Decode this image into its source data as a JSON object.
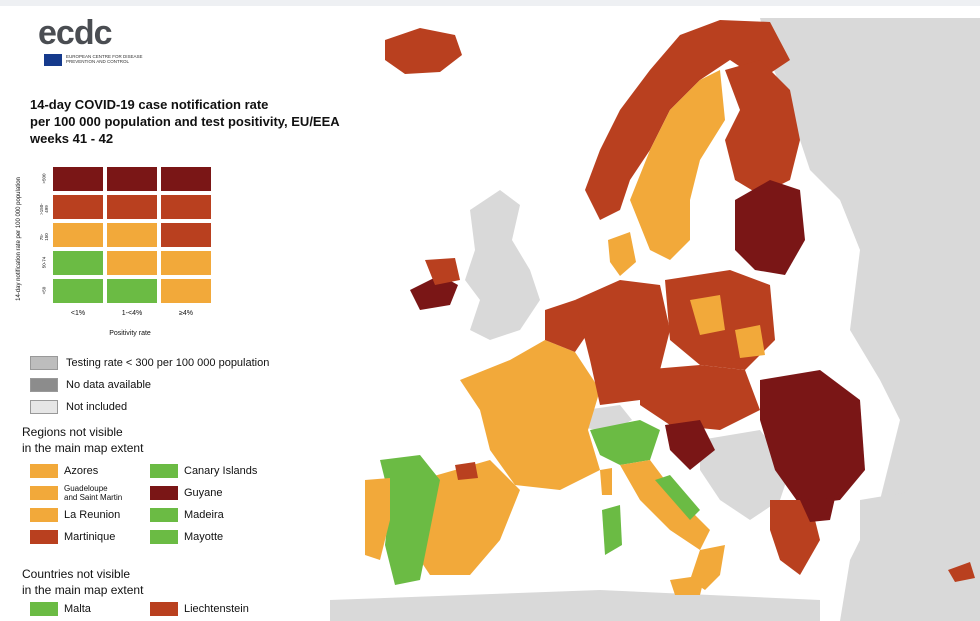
{
  "logo": {
    "word": "ecdc",
    "sub": "EUROPEAN CENTRE FOR DISEASE PREVENTION AND CONTROL"
  },
  "title": {
    "line1": "14-day COVID-19 case notification rate",
    "line2": "per 100 000 population and test positivity, EU/EEA",
    "line3": "weeks 41 - 42"
  },
  "colors": {
    "dark_red": "#7a1616",
    "red": "#b9401f",
    "orange": "#f2a93a",
    "green": "#6bbb44",
    "testing_grey": "#bdbdbd",
    "nodata_grey": "#8c8c8c",
    "not_included": "#e6e6e6",
    "sea": "#ffffff",
    "nonmember": "#d9d9d9"
  },
  "matrix": {
    "y_axis_title": "14-day notification rate per 100 000 population",
    "y_ticks": [
      ">500",
      ">150-499",
      "75-150",
      "50-74",
      "<50"
    ],
    "x_ticks": [
      "<1%",
      "1-<4%",
      "≥4%"
    ],
    "x_axis_title": "Positivity rate",
    "cells": [
      [
        "dark_red",
        "dark_red",
        "dark_red"
      ],
      [
        "red",
        "red",
        "red"
      ],
      [
        "orange",
        "orange",
        "red"
      ],
      [
        "green",
        "orange",
        "orange"
      ],
      [
        "green",
        "green",
        "orange"
      ]
    ]
  },
  "legend": {
    "testing": "Testing rate < 300 per 100 000 population",
    "no_data": "No data available",
    "not_included": "Not included",
    "regions_head_1": "Regions not visible",
    "regions_head_2": "in the main map extent",
    "regions": [
      {
        "label": "Azores",
        "color": "orange"
      },
      {
        "label": "Guadeloupe",
        "label2": "and Saint Martin",
        "color": "orange"
      },
      {
        "label": "La Reunion",
        "color": "orange"
      },
      {
        "label": "Martinique",
        "color": "red"
      },
      {
        "label": "Canary Islands",
        "color": "green"
      },
      {
        "label": "Guyane",
        "color": "dark_red"
      },
      {
        "label": "Madeira",
        "color": "green"
      },
      {
        "label": "Mayotte",
        "color": "green"
      }
    ],
    "countries_head_1": "Countries not visible",
    "countries_head_2": "in the main map extent",
    "countries": [
      {
        "label": "Malta",
        "color": "green"
      },
      {
        "label": "Liechtenstein",
        "color": "red"
      }
    ]
  }
}
